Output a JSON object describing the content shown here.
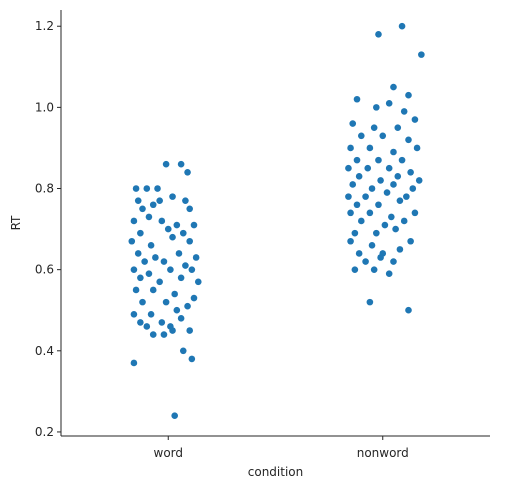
{
  "chart_data": {
    "type": "scatter",
    "subtype": "strip",
    "xlabel": "condition",
    "ylabel": "RT",
    "categories": [
      "word",
      "nonword"
    ],
    "ylim": [
      0.19,
      1.24
    ],
    "yticks": [
      0.2,
      0.4,
      0.6,
      0.8,
      1.0,
      1.2
    ],
    "ytick_labels": [
      "0.2",
      "0.4",
      "0.6",
      "0.8",
      "1.0",
      "1.2"
    ],
    "grid": false,
    "color": "#1f77b4",
    "series": [
      {
        "category": "word",
        "points": [
          {
            "jitter": -0.16,
            "y": 0.37
          },
          {
            "jitter": 0.03,
            "y": 0.24
          },
          {
            "jitter": 0.07,
            "y": 0.4
          },
          {
            "jitter": 0.11,
            "y": 0.38
          },
          {
            "jitter": -0.01,
            "y": 0.86
          },
          {
            "jitter": 0.06,
            "y": 0.86
          },
          {
            "jitter": 0.09,
            "y": 0.84
          },
          {
            "jitter": -0.15,
            "y": 0.8
          },
          {
            "jitter": -0.1,
            "y": 0.8
          },
          {
            "jitter": -0.05,
            "y": 0.8
          },
          {
            "jitter": -0.14,
            "y": 0.77
          },
          {
            "jitter": -0.04,
            "y": 0.77
          },
          {
            "jitter": 0.02,
            "y": 0.78
          },
          {
            "jitter": 0.08,
            "y": 0.77
          },
          {
            "jitter": -0.12,
            "y": 0.75
          },
          {
            "jitter": -0.07,
            "y": 0.76
          },
          {
            "jitter": 0.1,
            "y": 0.75
          },
          {
            "jitter": -0.16,
            "y": 0.72
          },
          {
            "jitter": -0.09,
            "y": 0.73
          },
          {
            "jitter": -0.03,
            "y": 0.72
          },
          {
            "jitter": 0.04,
            "y": 0.71
          },
          {
            "jitter": 0.12,
            "y": 0.71
          },
          {
            "jitter": -0.13,
            "y": 0.69
          },
          {
            "jitter": 0.0,
            "y": 0.7
          },
          {
            "jitter": 0.07,
            "y": 0.69
          },
          {
            "jitter": -0.17,
            "y": 0.67
          },
          {
            "jitter": -0.08,
            "y": 0.66
          },
          {
            "jitter": 0.02,
            "y": 0.68
          },
          {
            "jitter": 0.1,
            "y": 0.67
          },
          {
            "jitter": -0.14,
            "y": 0.64
          },
          {
            "jitter": -0.06,
            "y": 0.63
          },
          {
            "jitter": 0.05,
            "y": 0.64
          },
          {
            "jitter": 0.13,
            "y": 0.63
          },
          {
            "jitter": -0.11,
            "y": 0.62
          },
          {
            "jitter": -0.02,
            "y": 0.62
          },
          {
            "jitter": 0.08,
            "y": 0.61
          },
          {
            "jitter": -0.16,
            "y": 0.6
          },
          {
            "jitter": -0.09,
            "y": 0.59
          },
          {
            "jitter": 0.01,
            "y": 0.6
          },
          {
            "jitter": 0.11,
            "y": 0.6
          },
          {
            "jitter": -0.13,
            "y": 0.58
          },
          {
            "jitter": -0.04,
            "y": 0.57
          },
          {
            "jitter": 0.06,
            "y": 0.58
          },
          {
            "jitter": 0.14,
            "y": 0.57
          },
          {
            "jitter": -0.15,
            "y": 0.55
          },
          {
            "jitter": -0.07,
            "y": 0.55
          },
          {
            "jitter": 0.03,
            "y": 0.54
          },
          {
            "jitter": 0.12,
            "y": 0.53
          },
          {
            "jitter": -0.12,
            "y": 0.52
          },
          {
            "jitter": -0.01,
            "y": 0.52
          },
          {
            "jitter": 0.09,
            "y": 0.51
          },
          {
            "jitter": -0.16,
            "y": 0.49
          },
          {
            "jitter": -0.08,
            "y": 0.49
          },
          {
            "jitter": 0.04,
            "y": 0.5
          },
          {
            "jitter": -0.13,
            "y": 0.47
          },
          {
            "jitter": -0.03,
            "y": 0.47
          },
          {
            "jitter": 0.06,
            "y": 0.48
          },
          {
            "jitter": -0.1,
            "y": 0.46
          },
          {
            "jitter": 0.01,
            "y": 0.46
          },
          {
            "jitter": -0.07,
            "y": 0.44
          },
          {
            "jitter": -0.02,
            "y": 0.44
          },
          {
            "jitter": 0.02,
            "y": 0.45
          },
          {
            "jitter": 0.1,
            "y": 0.45
          }
        ]
      },
      {
        "category": "nonword",
        "points": [
          {
            "jitter": -0.02,
            "y": 1.18
          },
          {
            "jitter": 0.09,
            "y": 1.2
          },
          {
            "jitter": 0.18,
            "y": 1.13
          },
          {
            "jitter": -0.12,
            "y": 1.02
          },
          {
            "jitter": 0.05,
            "y": 1.05
          },
          {
            "jitter": 0.12,
            "y": 1.03
          },
          {
            "jitter": -0.03,
            "y": 1.0
          },
          {
            "jitter": 0.03,
            "y": 1.01
          },
          {
            "jitter": 0.1,
            "y": 0.99
          },
          {
            "jitter": -0.14,
            "y": 0.96
          },
          {
            "jitter": -0.04,
            "y": 0.95
          },
          {
            "jitter": 0.07,
            "y": 0.95
          },
          {
            "jitter": 0.15,
            "y": 0.97
          },
          {
            "jitter": -0.1,
            "y": 0.93
          },
          {
            "jitter": 0.0,
            "y": 0.93
          },
          {
            "jitter": 0.12,
            "y": 0.92
          },
          {
            "jitter": -0.15,
            "y": 0.9
          },
          {
            "jitter": -0.06,
            "y": 0.9
          },
          {
            "jitter": 0.05,
            "y": 0.89
          },
          {
            "jitter": 0.16,
            "y": 0.9
          },
          {
            "jitter": -0.12,
            "y": 0.87
          },
          {
            "jitter": -0.02,
            "y": 0.87
          },
          {
            "jitter": 0.09,
            "y": 0.87
          },
          {
            "jitter": -0.16,
            "y": 0.85
          },
          {
            "jitter": -0.07,
            "y": 0.85
          },
          {
            "jitter": 0.03,
            "y": 0.85
          },
          {
            "jitter": 0.13,
            "y": 0.84
          },
          {
            "jitter": -0.11,
            "y": 0.83
          },
          {
            "jitter": -0.01,
            "y": 0.82
          },
          {
            "jitter": 0.07,
            "y": 0.83
          },
          {
            "jitter": 0.17,
            "y": 0.82
          },
          {
            "jitter": -0.14,
            "y": 0.81
          },
          {
            "jitter": -0.05,
            "y": 0.8
          },
          {
            "jitter": 0.05,
            "y": 0.81
          },
          {
            "jitter": 0.14,
            "y": 0.8
          },
          {
            "jitter": -0.16,
            "y": 0.78
          },
          {
            "jitter": -0.08,
            "y": 0.78
          },
          {
            "jitter": 0.02,
            "y": 0.79
          },
          {
            "jitter": 0.11,
            "y": 0.78
          },
          {
            "jitter": -0.12,
            "y": 0.76
          },
          {
            "jitter": -0.02,
            "y": 0.76
          },
          {
            "jitter": 0.08,
            "y": 0.77
          },
          {
            "jitter": -0.15,
            "y": 0.74
          },
          {
            "jitter": -0.06,
            "y": 0.74
          },
          {
            "jitter": 0.04,
            "y": 0.73
          },
          {
            "jitter": 0.15,
            "y": 0.74
          },
          {
            "jitter": -0.1,
            "y": 0.72
          },
          {
            "jitter": 0.01,
            "y": 0.71
          },
          {
            "jitter": 0.1,
            "y": 0.72
          },
          {
            "jitter": -0.13,
            "y": 0.69
          },
          {
            "jitter": -0.03,
            "y": 0.69
          },
          {
            "jitter": 0.06,
            "y": 0.7
          },
          {
            "jitter": -0.15,
            "y": 0.67
          },
          {
            "jitter": -0.05,
            "y": 0.66
          },
          {
            "jitter": 0.13,
            "y": 0.67
          },
          {
            "jitter": -0.11,
            "y": 0.64
          },
          {
            "jitter": 0.0,
            "y": 0.64
          },
          {
            "jitter": 0.08,
            "y": 0.65
          },
          {
            "jitter": -0.08,
            "y": 0.62
          },
          {
            "jitter": -0.01,
            "y": 0.63
          },
          {
            "jitter": 0.05,
            "y": 0.62
          },
          {
            "jitter": -0.13,
            "y": 0.6
          },
          {
            "jitter": -0.04,
            "y": 0.6
          },
          {
            "jitter": 0.03,
            "y": 0.59
          },
          {
            "jitter": -0.06,
            "y": 0.52
          },
          {
            "jitter": 0.12,
            "y": 0.5
          }
        ]
      }
    ]
  }
}
